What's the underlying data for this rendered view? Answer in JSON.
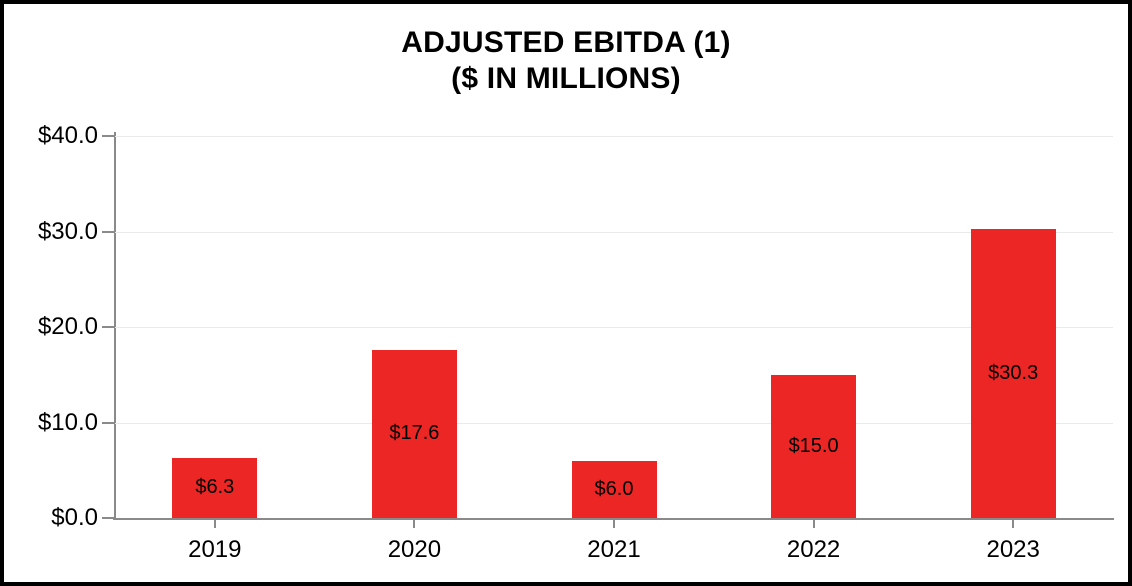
{
  "title": {
    "line1": "ADJUSTED EBITDA (1)",
    "line2": "($ IN MILLIONS)"
  },
  "chart_data": {
    "type": "bar",
    "title": "ADJUSTED EBITDA (1) ($ IN MILLIONS)",
    "categories": [
      "2019",
      "2020",
      "2021",
      "2022",
      "2023"
    ],
    "values": [
      6.3,
      17.6,
      6.0,
      15.0,
      30.3
    ],
    "bar_labels": [
      "$6.3",
      "$17.6",
      "$6.0",
      "$15.0",
      "$30.3"
    ],
    "xlabel": "",
    "ylabel": "",
    "ylim": [
      0,
      40
    ],
    "y_ticks": [
      0,
      10,
      20,
      30,
      40
    ],
    "y_tick_labels": [
      "$0.0",
      "$10.0",
      "$20.0",
      "$30.0",
      "$40.0"
    ],
    "grid": "horizontal",
    "legend": "none",
    "bar_label_position": "inside-center",
    "colors": {
      "bar": "#EC2624",
      "axis": "#8A8A8A",
      "gridline": "#EAEAEA",
      "text": "#000000",
      "frame_border": "#000000",
      "background": "#FFFFFF"
    }
  }
}
